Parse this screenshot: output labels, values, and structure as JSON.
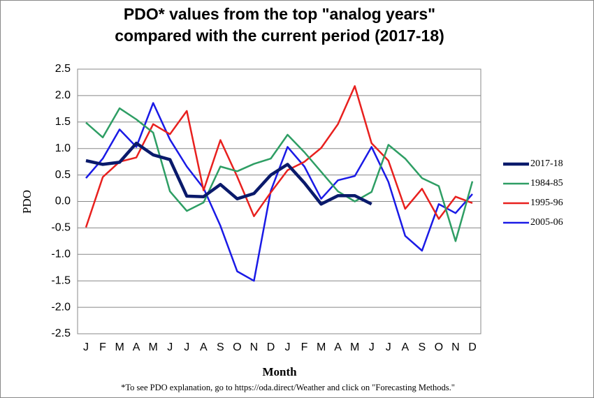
{
  "chart_data": {
    "type": "line",
    "title": [
      "PDO* values from the top \"analog years\"",
      "compared with the current period (2017-18)"
    ],
    "x_label": "Month",
    "y_label": "PDO",
    "footnote": "*To see PDO explanation, go to https://oda.direct/Weather and click on \"Forecasting Methods.\"",
    "categories": [
      "J",
      "F",
      "M",
      "A",
      "M",
      "J",
      "J",
      "A",
      "S",
      "O",
      "N",
      "D",
      "J",
      "F",
      "M",
      "A",
      "M",
      "J",
      "J",
      "A",
      "S",
      "O",
      "N",
      "D"
    ],
    "series": [
      {
        "name": "2017-18",
        "color": "#0a1a6b",
        "width": 4.5,
        "values": [
          0.77,
          0.7,
          0.74,
          1.1,
          0.88,
          0.79,
          0.1,
          0.09,
          0.32,
          0.05,
          0.15,
          0.5,
          0.7,
          0.35,
          -0.05,
          0.11,
          0.11,
          -0.05,
          null,
          null,
          null,
          null,
          null,
          null
        ]
      },
      {
        "name": "1984-85",
        "color": "#2e9e64",
        "width": 2.5,
        "values": [
          1.49,
          1.21,
          1.76,
          1.55,
          1.3,
          0.19,
          -0.18,
          -0.02,
          0.66,
          0.57,
          0.71,
          0.81,
          1.26,
          0.93,
          0.56,
          0.19,
          0.0,
          0.18,
          1.07,
          0.81,
          0.44,
          0.29,
          -0.75,
          0.38
        ]
      },
      {
        "name": "1995-96",
        "color": "#e8201e",
        "width": 2.5,
        "values": [
          -0.49,
          0.46,
          0.75,
          0.83,
          1.46,
          1.27,
          1.71,
          0.21,
          1.16,
          0.47,
          -0.28,
          0.17,
          0.59,
          0.75,
          1.01,
          1.46,
          2.18,
          1.1,
          0.77,
          -0.14,
          0.24,
          -0.33,
          0.09,
          -0.03
        ]
      },
      {
        "name": "2005-06",
        "color": "#1a1ae6",
        "width": 2.5,
        "values": [
          0.44,
          0.81,
          1.36,
          1.03,
          1.86,
          1.17,
          0.66,
          0.25,
          -0.46,
          -1.32,
          -1.5,
          0.2,
          1.03,
          0.66,
          0.05,
          0.4,
          0.48,
          1.03,
          0.37,
          -0.65,
          -0.93,
          -0.05,
          -0.22,
          0.14
        ]
      }
    ],
    "ylim": [
      -2.5,
      2.5
    ],
    "yticks": [
      -2.5,
      {
        "value": -2,
        "label": "-2.0"
      },
      -1.5,
      {
        "value": -1,
        "label": "-1.0"
      },
      -0.5,
      {
        "value": 0,
        "label": "0.0"
      },
      0.5,
      {
        "value": 1,
        "label": "1.0"
      },
      1.5,
      {
        "value": 2,
        "label": "2.0"
      },
      2.5
    ],
    "grid": true,
    "legend": "right"
  }
}
